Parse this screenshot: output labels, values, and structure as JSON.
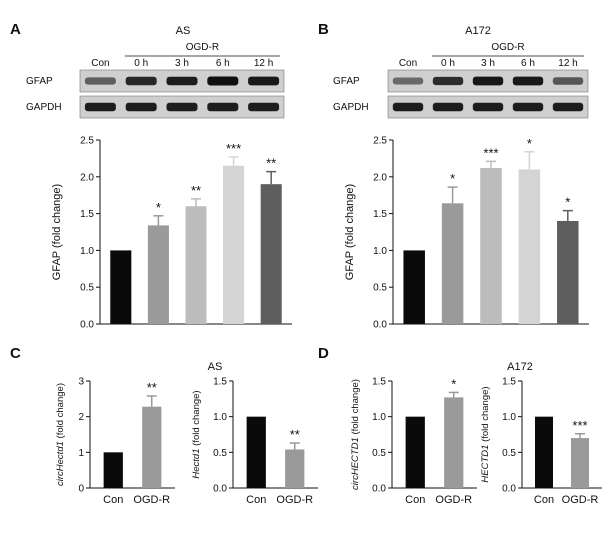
{
  "figure": {
    "panels": [
      {
        "letter": "A",
        "title": "AS",
        "blot": {
          "con_label": "Con",
          "group_label": "OGD-R",
          "lanes": [
            "0 h",
            "3 h",
            "6 h",
            "12 h"
          ],
          "rows": [
            {
              "label": "GFAP",
              "intensity": [
                0.55,
                0.85,
                0.9,
                0.97,
                0.92
              ]
            },
            {
              "label": "GAPDH",
              "intensity": [
                0.9,
                0.9,
                0.9,
                0.9,
                0.9
              ]
            }
          ]
        }
      },
      {
        "letter": "B",
        "title": "A172",
        "blot": {
          "con_label": "Con",
          "group_label": "OGD-R",
          "lanes": [
            "0 h",
            "3 h",
            "6 h",
            "12 h"
          ],
          "rows": [
            {
              "label": "GFAP",
              "intensity": [
                0.5,
                0.82,
                0.93,
                0.92,
                0.6
              ]
            },
            {
              "label": "GAPDH",
              "intensity": [
                0.9,
                0.9,
                0.9,
                0.9,
                0.9
              ]
            }
          ]
        }
      },
      {
        "letter": "C",
        "title": "AS"
      },
      {
        "letter": "D",
        "title": "A172"
      }
    ]
  },
  "chart_data": [
    {
      "type": "bar",
      "panel": "A",
      "categories": [
        "",
        "",
        "",
        "",
        ""
      ],
      "values": [
        1.0,
        1.34,
        1.6,
        2.15,
        1.9
      ],
      "errors": [
        0,
        0.13,
        0.1,
        0.12,
        0.17
      ],
      "significance": [
        "",
        "*",
        "**",
        "***",
        "**"
      ],
      "colors": [
        "#0a0a0a",
        "#9a9a9a",
        "#bcbcbc",
        "#d4d4d4",
        "#5e5e5e"
      ],
      "ylabel": "GFAP (fold change)",
      "ylim": [
        0,
        2.5
      ],
      "yticks": [
        "0.0",
        "0.5",
        "1.0",
        "1.5",
        "2.0",
        "2.5"
      ]
    },
    {
      "type": "bar",
      "panel": "B",
      "categories": [
        "",
        "",
        "",
        "",
        ""
      ],
      "values": [
        1.0,
        1.64,
        2.12,
        2.1,
        1.4
      ],
      "errors": [
        0,
        0.22,
        0.09,
        0.24,
        0.14
      ],
      "significance": [
        "",
        "*",
        "***",
        "*",
        "*"
      ],
      "colors": [
        "#0a0a0a",
        "#9a9a9a",
        "#bcbcbc",
        "#d4d4d4",
        "#5e5e5e"
      ],
      "ylabel": "GFAP (fold change)",
      "ylim": [
        0,
        2.5
      ],
      "yticks": [
        "0.0",
        "0.5",
        "1.0",
        "1.5",
        "2.0",
        "2.5"
      ]
    },
    {
      "type": "bar",
      "panel": "C",
      "categories": [
        "Con",
        "OGD-R"
      ],
      "values": [
        1.0,
        2.28
      ],
      "errors": [
        0,
        0.3
      ],
      "significance": [
        "",
        "**"
      ],
      "colors": [
        "#0a0a0a",
        "#9a9a9a"
      ],
      "ylabel_italic": "circHectd1",
      "ylabel_rest": " (fold change)",
      "ylim": [
        0,
        3
      ],
      "yticks": [
        "0",
        "1",
        "2",
        "3"
      ]
    },
    {
      "type": "bar",
      "panel": "C",
      "categories": [
        "Con",
        "OGD-R"
      ],
      "values": [
        1.0,
        0.54
      ],
      "errors": [
        0,
        0.09
      ],
      "significance": [
        "",
        "**"
      ],
      "colors": [
        "#0a0a0a",
        "#9a9a9a"
      ],
      "ylabel_italic": "Hectd1",
      "ylabel_rest": " (fold change)",
      "ylim": [
        0,
        1.5
      ],
      "yticks": [
        "0.0",
        "0.5",
        "1.0",
        "1.5"
      ]
    },
    {
      "type": "bar",
      "panel": "D",
      "categories": [
        "Con",
        "OGD-R"
      ],
      "values": [
        1.0,
        1.27
      ],
      "errors": [
        0,
        0.07
      ],
      "significance": [
        "",
        "*"
      ],
      "colors": [
        "#0a0a0a",
        "#9a9a9a"
      ],
      "ylabel_italic": "circHECTD1",
      "ylabel_rest": " (fold change)",
      "ylim": [
        0,
        1.5
      ],
      "yticks": [
        "0.0",
        "0.5",
        "1.0",
        "1.5"
      ]
    },
    {
      "type": "bar",
      "panel": "D",
      "categories": [
        "Con",
        "OGD-R"
      ],
      "values": [
        1.0,
        0.7
      ],
      "errors": [
        0,
        0.06
      ],
      "significance": [
        "",
        "***"
      ],
      "colors": [
        "#0a0a0a",
        "#9a9a9a"
      ],
      "ylabel_italic": "HECTD1",
      "ylabel_rest": " (fold change)",
      "ylim": [
        0,
        1.5
      ],
      "yticks": [
        "0.0",
        "0.5",
        "1.0",
        "1.5"
      ]
    }
  ]
}
